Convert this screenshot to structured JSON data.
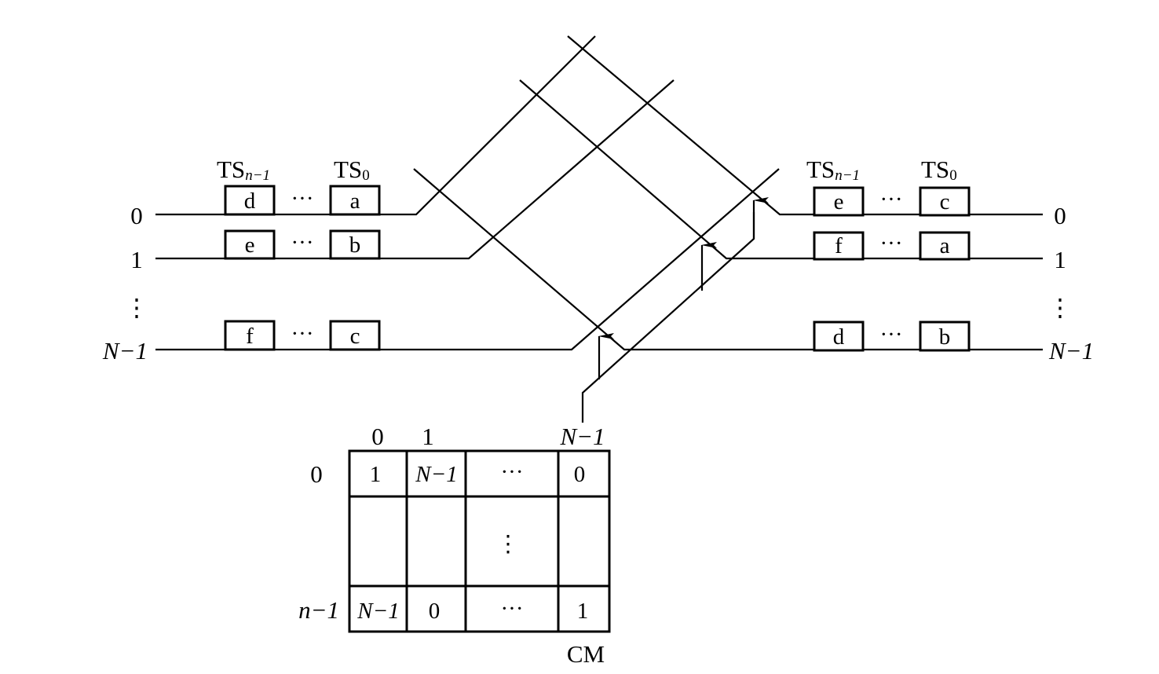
{
  "input_side": {
    "ts_headers": [
      "TS",
      "n−1",
      "TS",
      "0"
    ],
    "rows": [
      {
        "label": "0",
        "slots": [
          "d",
          "···",
          "a"
        ]
      },
      {
        "label": "1",
        "slots": [
          "e",
          "···",
          "b"
        ]
      },
      {
        "label": "N−1",
        "slots": [
          "f",
          "···",
          "c"
        ]
      }
    ],
    "vertical_ellipsis": "⋮"
  },
  "output_side": {
    "ts_headers": [
      "TS",
      "n−1",
      "TS",
      "0"
    ],
    "rows": [
      {
        "label": "0",
        "slots": [
          "e",
          "···",
          "c"
        ]
      },
      {
        "label": "1",
        "slots": [
          "f",
          "···",
          "a"
        ]
      },
      {
        "label": "N−1",
        "slots": [
          "d",
          "···",
          "b"
        ]
      }
    ],
    "vertical_ellipsis": "⋮"
  },
  "control_memory": {
    "name": "CM",
    "column_headers": [
      "0",
      "1",
      "N−1"
    ],
    "row_headers": [
      "0",
      "n−1"
    ],
    "cells": [
      [
        "1",
        "N−1",
        "···",
        "0"
      ],
      [
        "",
        "",
        "⋮",
        ""
      ],
      [
        "N−1",
        "0",
        "···",
        "1"
      ]
    ]
  }
}
